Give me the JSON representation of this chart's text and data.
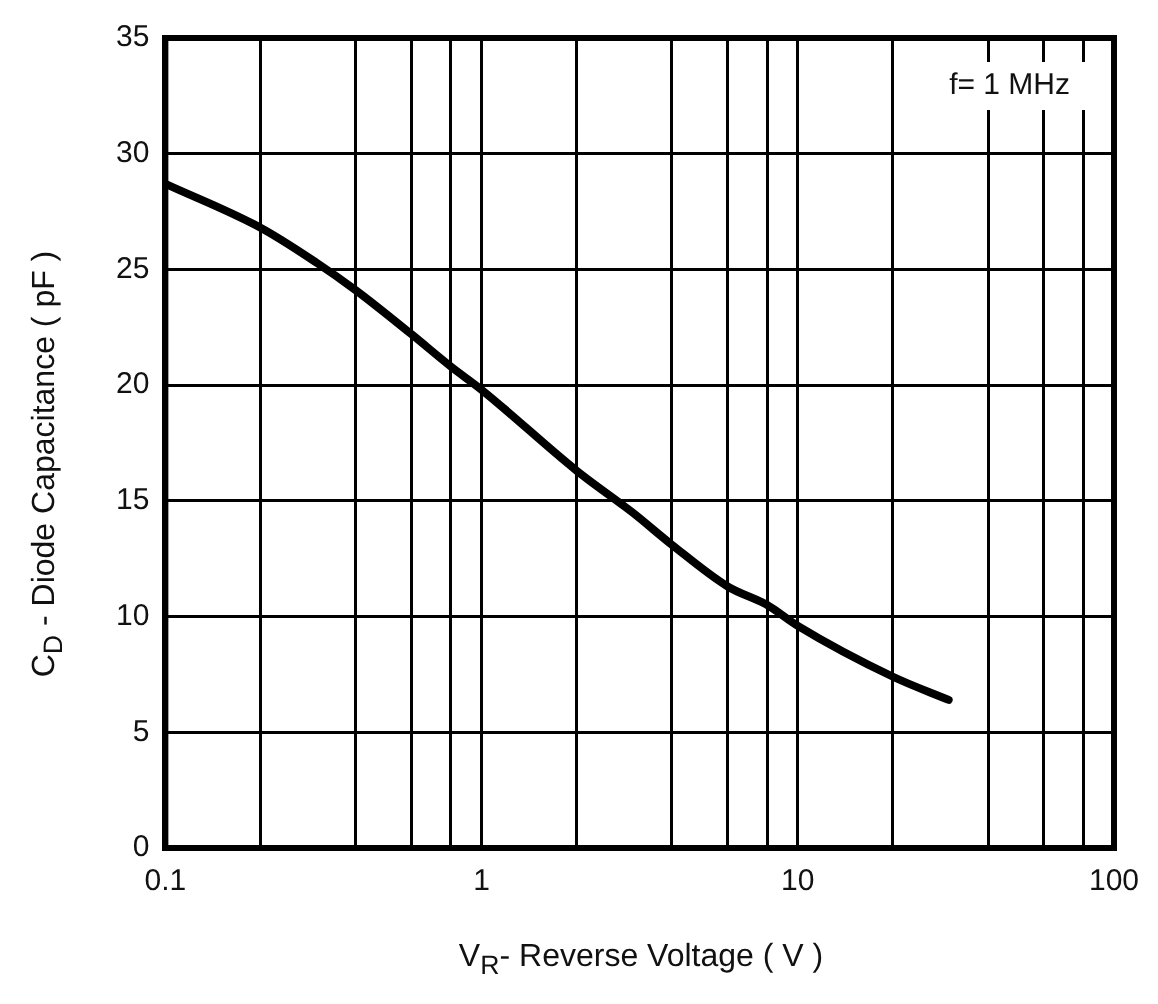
{
  "chart_data": {
    "type": "line",
    "xlabel": "V$_{R}$- Reverse Voltage ( V )",
    "ylabel": "C$_{D}$ - Diode Capacitance ( pF )",
    "annotations": [
      "f= 1 MHz"
    ],
    "log": "x",
    "grid": true,
    "marker": "none",
    "line_style": "solid",
    "xlim": [
      0.1,
      100
    ],
    "ylim": [
      0,
      35
    ],
    "xticks": [
      0.1,
      {
        "value": 0.2,
        "label": null
      },
      {
        "value": 0.4,
        "label": null
      },
      {
        "value": 0.6,
        "label": null
      },
      {
        "value": 0.8,
        "label": null
      },
      1,
      {
        "value": 2,
        "label": null
      },
      {
        "value": 4,
        "label": null
      },
      {
        "value": 6,
        "label": null
      },
      {
        "value": 8,
        "label": null
      },
      10,
      {
        "value": 20,
        "label": null
      },
      {
        "value": 40,
        "label": null
      },
      {
        "value": 60,
        "label": null
      },
      {
        "value": 80,
        "label": null
      },
      100
    ],
    "yticks": [
      0,
      5,
      10,
      15,
      20,
      25,
      30,
      35
    ],
    "series": [
      {
        "color": "#000000",
        "x": [
          0.1,
          0.2,
          0.3,
          0.4,
          0.6,
          0.8,
          1,
          2,
          3,
          4,
          6,
          8,
          10,
          20,
          30
        ],
        "values": [
          28.7,
          26.8,
          25.3,
          24.1,
          22.2,
          20.8,
          19.8,
          16.3,
          14.5,
          13.1,
          11.3,
          10.5,
          9.6,
          7.4,
          6.4
        ]
      }
    ]
  }
}
